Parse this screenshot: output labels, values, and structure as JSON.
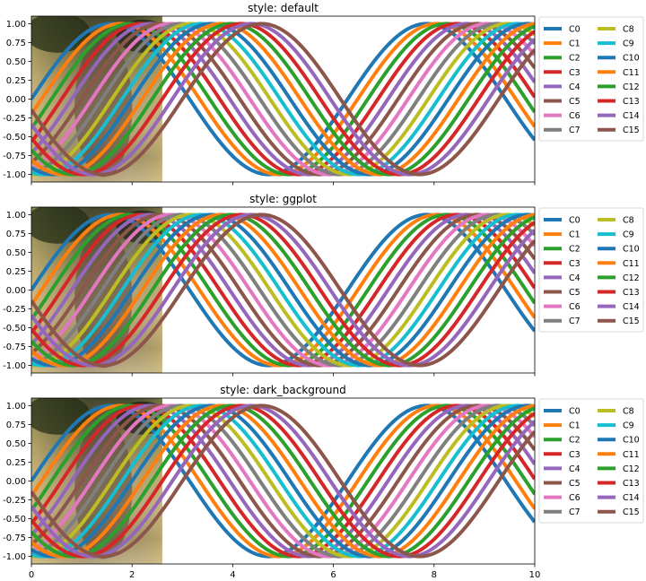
{
  "chart_data": [
    {
      "type": "line",
      "title": "style: default",
      "xlim": [
        0,
        10
      ],
      "ylim": [
        -1.1,
        1.1
      ],
      "xticks": [
        0,
        2,
        4,
        6,
        8,
        10
      ],
      "xtick_labels": [
        "",
        "",
        "",
        "",
        "",
        ""
      ],
      "yticks": [
        -1.0,
        -0.75,
        -0.5,
        -0.25,
        0.0,
        0.25,
        0.5,
        0.75,
        1.0
      ],
      "ytick_labels": [
        "-1.00",
        "-0.75",
        "-0.50",
        "-0.25",
        "0.00",
        "0.25",
        "0.50",
        "0.75",
        "1.00"
      ],
      "grid": false,
      "legend_position": "outside-right",
      "legend_columns": 2,
      "image_extent": [
        0,
        2.6,
        -1.1,
        1.1
      ],
      "series_formula": "y = sin(x + phase)",
      "series": [
        {
          "name": "C0",
          "phase": 0.0,
          "color": "#1f77b4"
        },
        {
          "name": "C1",
          "phase": -0.2,
          "color": "#ff7f0e"
        },
        {
          "name": "C2",
          "phase": -0.4,
          "color": "#2ca02c"
        },
        {
          "name": "C3",
          "phase": -0.6,
          "color": "#d62728"
        },
        {
          "name": "C4",
          "phase": -0.8,
          "color": "#9467bd"
        },
        {
          "name": "C5",
          "phase": -1.0,
          "color": "#8c564b"
        },
        {
          "name": "C6",
          "phase": -1.2,
          "color": "#e377c2"
        },
        {
          "name": "C7",
          "phase": -1.4,
          "color": "#7f7f7f"
        },
        {
          "name": "C8",
          "phase": -1.6,
          "color": "#bcbd22"
        },
        {
          "name": "C9",
          "phase": -1.8,
          "color": "#17becf"
        },
        {
          "name": "C10",
          "phase": -2.0,
          "color": "#1f77b4"
        },
        {
          "name": "C11",
          "phase": -2.2,
          "color": "#ff7f0e"
        },
        {
          "name": "C12",
          "phase": -2.4,
          "color": "#2ca02c"
        },
        {
          "name": "C13",
          "phase": -2.6,
          "color": "#d62728"
        },
        {
          "name": "C14",
          "phase": -2.8,
          "color": "#9467bd"
        },
        {
          "name": "C15",
          "phase": -3.0,
          "color": "#8c564b"
        }
      ]
    },
    {
      "type": "line",
      "title": "style: ggplot",
      "xlim": [
        0,
        10
      ],
      "ylim": [
        -1.1,
        1.1
      ],
      "xticks": [
        0,
        2,
        4,
        6,
        8,
        10
      ],
      "xtick_labels": [
        "",
        "",
        "",
        "",
        "",
        ""
      ],
      "yticks": [
        -1.0,
        -0.75,
        -0.5,
        -0.25,
        0.0,
        0.25,
        0.5,
        0.75,
        1.0
      ],
      "ytick_labels": [
        "-1.00",
        "-0.75",
        "-0.50",
        "-0.25",
        "0.00",
        "0.25",
        "0.50",
        "0.75",
        "1.00"
      ],
      "grid": false,
      "legend_position": "outside-right",
      "legend_columns": 2,
      "image_extent": [
        0,
        2.6,
        -1.1,
        1.1
      ],
      "series_formula": "y = sin(x + phase)",
      "series": [
        {
          "name": "C0",
          "phase": 0.0,
          "color": "#1f77b4"
        },
        {
          "name": "C1",
          "phase": -0.2,
          "color": "#ff7f0e"
        },
        {
          "name": "C2",
          "phase": -0.4,
          "color": "#2ca02c"
        },
        {
          "name": "C3",
          "phase": -0.6,
          "color": "#d62728"
        },
        {
          "name": "C4",
          "phase": -0.8,
          "color": "#9467bd"
        },
        {
          "name": "C5",
          "phase": -1.0,
          "color": "#8c564b"
        },
        {
          "name": "C6",
          "phase": -1.2,
          "color": "#e377c2"
        },
        {
          "name": "C7",
          "phase": -1.4,
          "color": "#7f7f7f"
        },
        {
          "name": "C8",
          "phase": -1.6,
          "color": "#bcbd22"
        },
        {
          "name": "C9",
          "phase": -1.8,
          "color": "#17becf"
        },
        {
          "name": "C10",
          "phase": -2.0,
          "color": "#1f77b4"
        },
        {
          "name": "C11",
          "phase": -2.2,
          "color": "#ff7f0e"
        },
        {
          "name": "C12",
          "phase": -2.4,
          "color": "#2ca02c"
        },
        {
          "name": "C13",
          "phase": -2.6,
          "color": "#d62728"
        },
        {
          "name": "C14",
          "phase": -2.8,
          "color": "#9467bd"
        },
        {
          "name": "C15",
          "phase": -3.0,
          "color": "#8c564b"
        }
      ]
    },
    {
      "type": "line",
      "title": "style: dark_background",
      "xlim": [
        0,
        10
      ],
      "ylim": [
        -1.1,
        1.1
      ],
      "xticks": [
        0,
        2,
        4,
        6,
        8,
        10
      ],
      "xtick_labels": [
        "0",
        "2",
        "4",
        "6",
        "8",
        "10"
      ],
      "yticks": [
        -1.0,
        -0.75,
        -0.5,
        -0.25,
        0.0,
        0.25,
        0.5,
        0.75,
        1.0
      ],
      "ytick_labels": [
        "-1.00",
        "-0.75",
        "-0.50",
        "-0.25",
        "0.00",
        "0.25",
        "0.50",
        "0.75",
        "1.00"
      ],
      "grid": false,
      "legend_position": "outside-right",
      "legend_columns": 2,
      "image_extent": [
        0,
        2.6,
        -1.1,
        1.1
      ],
      "series_formula": "y = sin(x + phase)",
      "series": [
        {
          "name": "C0",
          "phase": 0.0,
          "color": "#1f77b4"
        },
        {
          "name": "C1",
          "phase": -0.2,
          "color": "#ff7f0e"
        },
        {
          "name": "C2",
          "phase": -0.4,
          "color": "#2ca02c"
        },
        {
          "name": "C3",
          "phase": -0.6,
          "color": "#d62728"
        },
        {
          "name": "C4",
          "phase": -0.8,
          "color": "#9467bd"
        },
        {
          "name": "C5",
          "phase": -1.0,
          "color": "#8c564b"
        },
        {
          "name": "C6",
          "phase": -1.2,
          "color": "#e377c2"
        },
        {
          "name": "C7",
          "phase": -1.4,
          "color": "#7f7f7f"
        },
        {
          "name": "C8",
          "phase": -1.6,
          "color": "#bcbd22"
        },
        {
          "name": "C9",
          "phase": -1.8,
          "color": "#17becf"
        },
        {
          "name": "C10",
          "phase": -2.0,
          "color": "#1f77b4"
        },
        {
          "name": "C11",
          "phase": -2.2,
          "color": "#ff7f0e"
        },
        {
          "name": "C12",
          "phase": -2.4,
          "color": "#2ca02c"
        },
        {
          "name": "C13",
          "phase": -2.6,
          "color": "#d62728"
        },
        {
          "name": "C14",
          "phase": -2.8,
          "color": "#9467bd"
        },
        {
          "name": "C15",
          "phase": -3.0,
          "color": "#8c564b"
        }
      ]
    }
  ]
}
